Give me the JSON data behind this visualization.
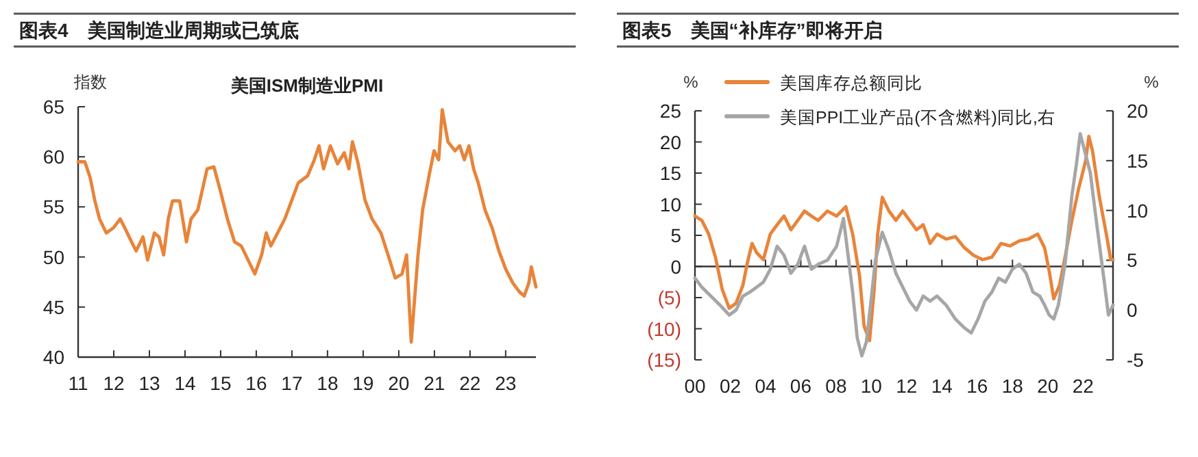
{
  "chart_data": [
    {
      "type": "line",
      "title": "图表4　美国制造业周期或已筑底",
      "subtitle": "美国ISM制造业PMI",
      "ylabel": "指数",
      "xlim": [
        2011,
        2023.85
      ],
      "ylim": [
        40,
        65
      ],
      "yticks": [
        40,
        45,
        50,
        55,
        60,
        65
      ],
      "xticks": [
        {
          "value": 2011,
          "label": "11"
        },
        {
          "value": 2012,
          "label": "12"
        },
        {
          "value": 2013,
          "label": "13"
        },
        {
          "value": 2014,
          "label": "14"
        },
        {
          "value": 2015,
          "label": "15"
        },
        {
          "value": 2016,
          "label": "16"
        },
        {
          "value": 2017,
          "label": "17"
        },
        {
          "value": 2018,
          "label": "18"
        },
        {
          "value": 2019,
          "label": "19"
        },
        {
          "value": 2020,
          "label": "20"
        },
        {
          "value": 2021,
          "label": "21"
        },
        {
          "value": 2022,
          "label": "22"
        },
        {
          "value": 2023,
          "label": "23"
        }
      ],
      "series": [
        {
          "color": "#e8843a",
          "x": [
            2011,
            2011.19,
            2011.34,
            2011.47,
            2011.6,
            2011.79,
            2011.99,
            2012.18,
            2012.31,
            2012.5,
            2012.63,
            2012.82,
            2012.95,
            2013.14,
            2013.27,
            2013.4,
            2013.53,
            2013.65,
            2013.85,
            2014.04,
            2014.17,
            2014.36,
            2014.62,
            2014.81,
            2015,
            2015.19,
            2015.39,
            2015.58,
            2015.77,
            2015.96,
            2016.15,
            2016.28,
            2016.41,
            2016.6,
            2016.8,
            2016.99,
            2017.18,
            2017.44,
            2017.63,
            2017.76,
            2017.89,
            2018.08,
            2018.28,
            2018.47,
            2018.6,
            2018.7,
            2018.86,
            2019.05,
            2019.25,
            2019.5,
            2019.7,
            2019.9,
            2020.09,
            2020.22,
            2020.35,
            2020.54,
            2020.67,
            2020.86,
            2020.99,
            2021.12,
            2021.22,
            2021.38,
            2021.58,
            2021.71,
            2021.84,
            2021.97,
            2022.1,
            2022.23,
            2022.42,
            2022.62,
            2022.81,
            2023,
            2023.2,
            2023.39,
            2023.52,
            2023.65,
            2023.72,
            2023.85
          ],
          "values": [
            59.5,
            59.5,
            57.9,
            55.6,
            53.8,
            52.4,
            52.9,
            53.8,
            52.9,
            51.5,
            50.6,
            52,
            49.7,
            52.4,
            52,
            50.2,
            53.8,
            55.6,
            55.6,
            51.5,
            53.8,
            54.7,
            58.8,
            59,
            56.5,
            53.8,
            51.5,
            51.1,
            49.7,
            48.3,
            50.2,
            52.4,
            51.1,
            52.4,
            53.8,
            55.6,
            57.4,
            58.1,
            59.7,
            61.1,
            58.8,
            61.1,
            59.3,
            60.4,
            58.8,
            61.5,
            59.3,
            55.7,
            53.8,
            52.4,
            50.2,
            47.9,
            48.3,
            50.2,
            41.5,
            50.2,
            54.7,
            58.3,
            60.6,
            59.7,
            64.7,
            61.5,
            60.6,
            61.1,
            59.7,
            61.1,
            58.8,
            57.4,
            54.7,
            52.9,
            50.6,
            48.8,
            47.4,
            46.5,
            46.1,
            47.4,
            49,
            47
          ]
        }
      ]
    },
    {
      "type": "line",
      "title": "图表5　美国“补库存”即将开启",
      "ylabel": "%",
      "y2label": "%",
      "legend": "top",
      "xlim": [
        2000,
        2023.7
      ],
      "ylim": [
        -15,
        25
      ],
      "yticks": [
        {
          "value": -15,
          "label": "(15)"
        },
        {
          "value": -10,
          "label": "(10)"
        },
        {
          "value": -5,
          "label": "(5)"
        },
        0,
        5,
        10,
        15,
        20,
        25
      ],
      "y2lim": [
        -5,
        20
      ],
      "y2ticks": [
        -5,
        0,
        5,
        10,
        15,
        20
      ],
      "xticks": [
        {
          "value": 2000,
          "label": "00"
        },
        {
          "value": 2002,
          "label": "02"
        },
        {
          "value": 2004,
          "label": "04"
        },
        {
          "value": 2006,
          "label": "06"
        },
        {
          "value": 2008,
          "label": "08"
        },
        {
          "value": 2010,
          "label": "10"
        },
        {
          "value": 2012,
          "label": "12"
        },
        {
          "value": 2014,
          "label": "14"
        },
        {
          "value": 2016,
          "label": "16"
        },
        {
          "value": 2018,
          "label": "18"
        },
        {
          "value": 2020,
          "label": "20"
        },
        {
          "value": 2022,
          "label": "22"
        }
      ],
      "series": [
        {
          "name": "美国库存总额同比",
          "color": "#e8843a",
          "x": [
            2000,
            2000.39,
            2000.78,
            2001.16,
            2001.55,
            2001.94,
            2002.33,
            2002.72,
            2002.98,
            2003.24,
            2003.5,
            2003.88,
            2004.27,
            2004.66,
            2005.05,
            2005.44,
            2005.83,
            2006.21,
            2006.6,
            2006.99,
            2007.51,
            2008.03,
            2008.55,
            2008.94,
            2009.33,
            2009.59,
            2009.9,
            2010.16,
            2010.36,
            2010.62,
            2011,
            2011.39,
            2011.78,
            2012.17,
            2012.56,
            2012.94,
            2013.33,
            2013.72,
            2014.24,
            2014.76,
            2015.28,
            2015.79,
            2016.31,
            2016.83,
            2017.35,
            2017.87,
            2018.39,
            2018.91,
            2019.43,
            2019.82,
            2020.08,
            2020.34,
            2020.67,
            2020.98,
            2021.37,
            2021.76,
            2022.15,
            2022.33,
            2022.54,
            2022.93,
            2023.32,
            2023.57,
            2023.7
          ],
          "values": [
            8.1,
            7.4,
            5.2,
            1.5,
            -3.7,
            -6.7,
            -5.9,
            -3,
            0.7,
            3.7,
            2.2,
            1.1,
            5.2,
            6.7,
            8.1,
            5.9,
            7.4,
            8.9,
            8.1,
            7.4,
            8.9,
            8.1,
            9.6,
            5.2,
            -1.5,
            -9.6,
            -11.9,
            -3.7,
            5.2,
            11.1,
            8.9,
            7.4,
            8.9,
            7.4,
            5.9,
            6.7,
            3.7,
            5.2,
            4.4,
            4.8,
            3,
            1.8,
            1.1,
            1.5,
            3.7,
            3.3,
            4.1,
            4.4,
            5.2,
            3,
            -0.7,
            -5.2,
            -3,
            1.5,
            7.4,
            12.6,
            17,
            20.9,
            18.5,
            11.1,
            5.2,
            1.1,
            1.1
          ]
        },
        {
          "name": "美国PPI工业产品(不含燃料)同比,右",
          "color": "#a6a6a6",
          "axis": "y2",
          "x": [
            2000,
            2000.39,
            2000.9,
            2001.42,
            2001.94,
            2002.33,
            2002.72,
            2003.11,
            2003.5,
            2003.88,
            2004.27,
            2004.66,
            2005.05,
            2005.44,
            2005.83,
            2006.21,
            2006.6,
            2006.99,
            2007.51,
            2008.03,
            2008.42,
            2008.68,
            2008.94,
            2009.2,
            2009.46,
            2009.72,
            2009.98,
            2010.23,
            2010.62,
            2011,
            2011.39,
            2011.78,
            2012.17,
            2012.56,
            2012.94,
            2013.33,
            2013.72,
            2014.24,
            2014.76,
            2015.28,
            2015.66,
            2016.05,
            2016.44,
            2016.83,
            2017.22,
            2017.6,
            2017.99,
            2018.39,
            2018.77,
            2019.16,
            2019.55,
            2019.82,
            2020.08,
            2020.34,
            2020.6,
            2020.98,
            2021.37,
            2021.63,
            2021.84,
            2022.15,
            2022.41,
            2022.8,
            2023.18,
            2023.44,
            2023.7
          ],
          "values": [
            3.2,
            2.3,
            1.4,
            0.5,
            -0.5,
            0,
            1.4,
            1.8,
            2.3,
            2.8,
            4.1,
            6.4,
            5.5,
            3.7,
            4.6,
            6.4,
            4.1,
            4.6,
            5,
            6.4,
            9.2,
            5.5,
            1.8,
            -2.8,
            -4.6,
            -3.2,
            0.9,
            5,
            7.8,
            6,
            3.7,
            2.3,
            0.9,
            0,
            1.4,
            0.9,
            1.4,
            0.5,
            -0.9,
            -1.8,
            -2.3,
            -0.9,
            0.9,
            1.8,
            3.2,
            2.8,
            4.1,
            4.6,
            3.7,
            1.8,
            1.4,
            0.5,
            -0.5,
            -0.9,
            0.5,
            4.6,
            11.5,
            14.7,
            17.7,
            15.6,
            13.8,
            8.3,
            3.2,
            -0.5,
            0.5
          ]
        }
      ]
    }
  ]
}
